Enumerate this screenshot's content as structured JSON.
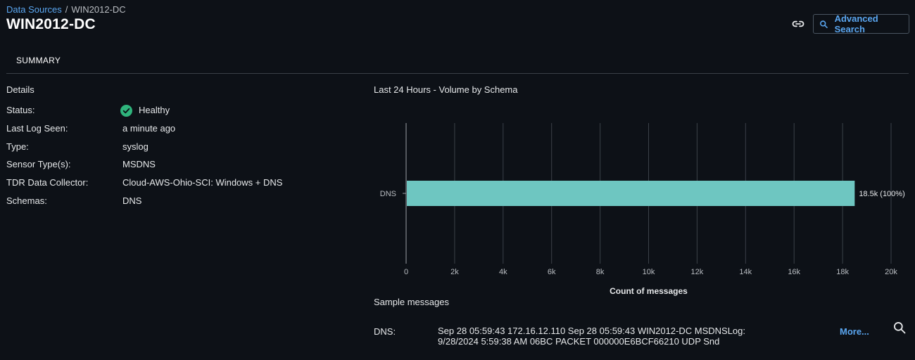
{
  "breadcrumb": {
    "parent": "Data Sources",
    "separator": "/",
    "current": "WIN2012-DC"
  },
  "header": {
    "title": "WIN2012-DC",
    "advanced_search_label": "Advanced Search",
    "link_icon": "link-icon",
    "search_icon": "search-icon"
  },
  "tabs": [
    {
      "label": "SUMMARY",
      "active": true
    }
  ],
  "details": {
    "heading": "Details",
    "rows": [
      {
        "label": "Status:",
        "value": "Healthy"
      },
      {
        "label": "Last Log Seen:",
        "value": "a minute ago"
      },
      {
        "label": "Type:",
        "value": "syslog"
      },
      {
        "label": "Sensor Type(s):",
        "value": "MSDNS"
      },
      {
        "label": "TDR Data Collector:",
        "value": "Cloud-AWS-Ohio-SCI: Windows + DNS"
      },
      {
        "label": "Schemas:",
        "value": "DNS"
      }
    ],
    "status_color": "#2fb47c"
  },
  "chart": {
    "heading": "Last 24 Hours - Volume by Schema"
  },
  "chart_data": {
    "type": "bar",
    "orientation": "horizontal",
    "categories": [
      "DNS"
    ],
    "values": [
      18500
    ],
    "data_labels": [
      "18.5k (100%)"
    ],
    "xlabel": "Count of messages",
    "ylabel": "",
    "xlim": [
      0,
      20000
    ],
    "x_ticks": [
      0,
      2000,
      4000,
      6000,
      8000,
      10000,
      12000,
      14000,
      16000,
      18000,
      20000
    ],
    "x_tick_labels": [
      "0",
      "2k",
      "4k",
      "6k",
      "8k",
      "10k",
      "12k",
      "14k",
      "16k",
      "18k",
      "20k"
    ],
    "grid": true,
    "bar_color": "#6ec6c1"
  },
  "samples": {
    "heading": "Sample messages",
    "items": [
      {
        "schema": "DNS:",
        "message": "Sep 28 05:59:43 172.16.12.110 Sep 28 05:59:43 WIN2012-DC MSDNSLog: 9/28/2024 5:59:38 AM 06BC PACKET 000000E6BCF66210 UDP Snd",
        "more_label": "More..."
      }
    ]
  },
  "colors": {
    "background": "#0d1117",
    "accent": "#5aa6f0"
  }
}
